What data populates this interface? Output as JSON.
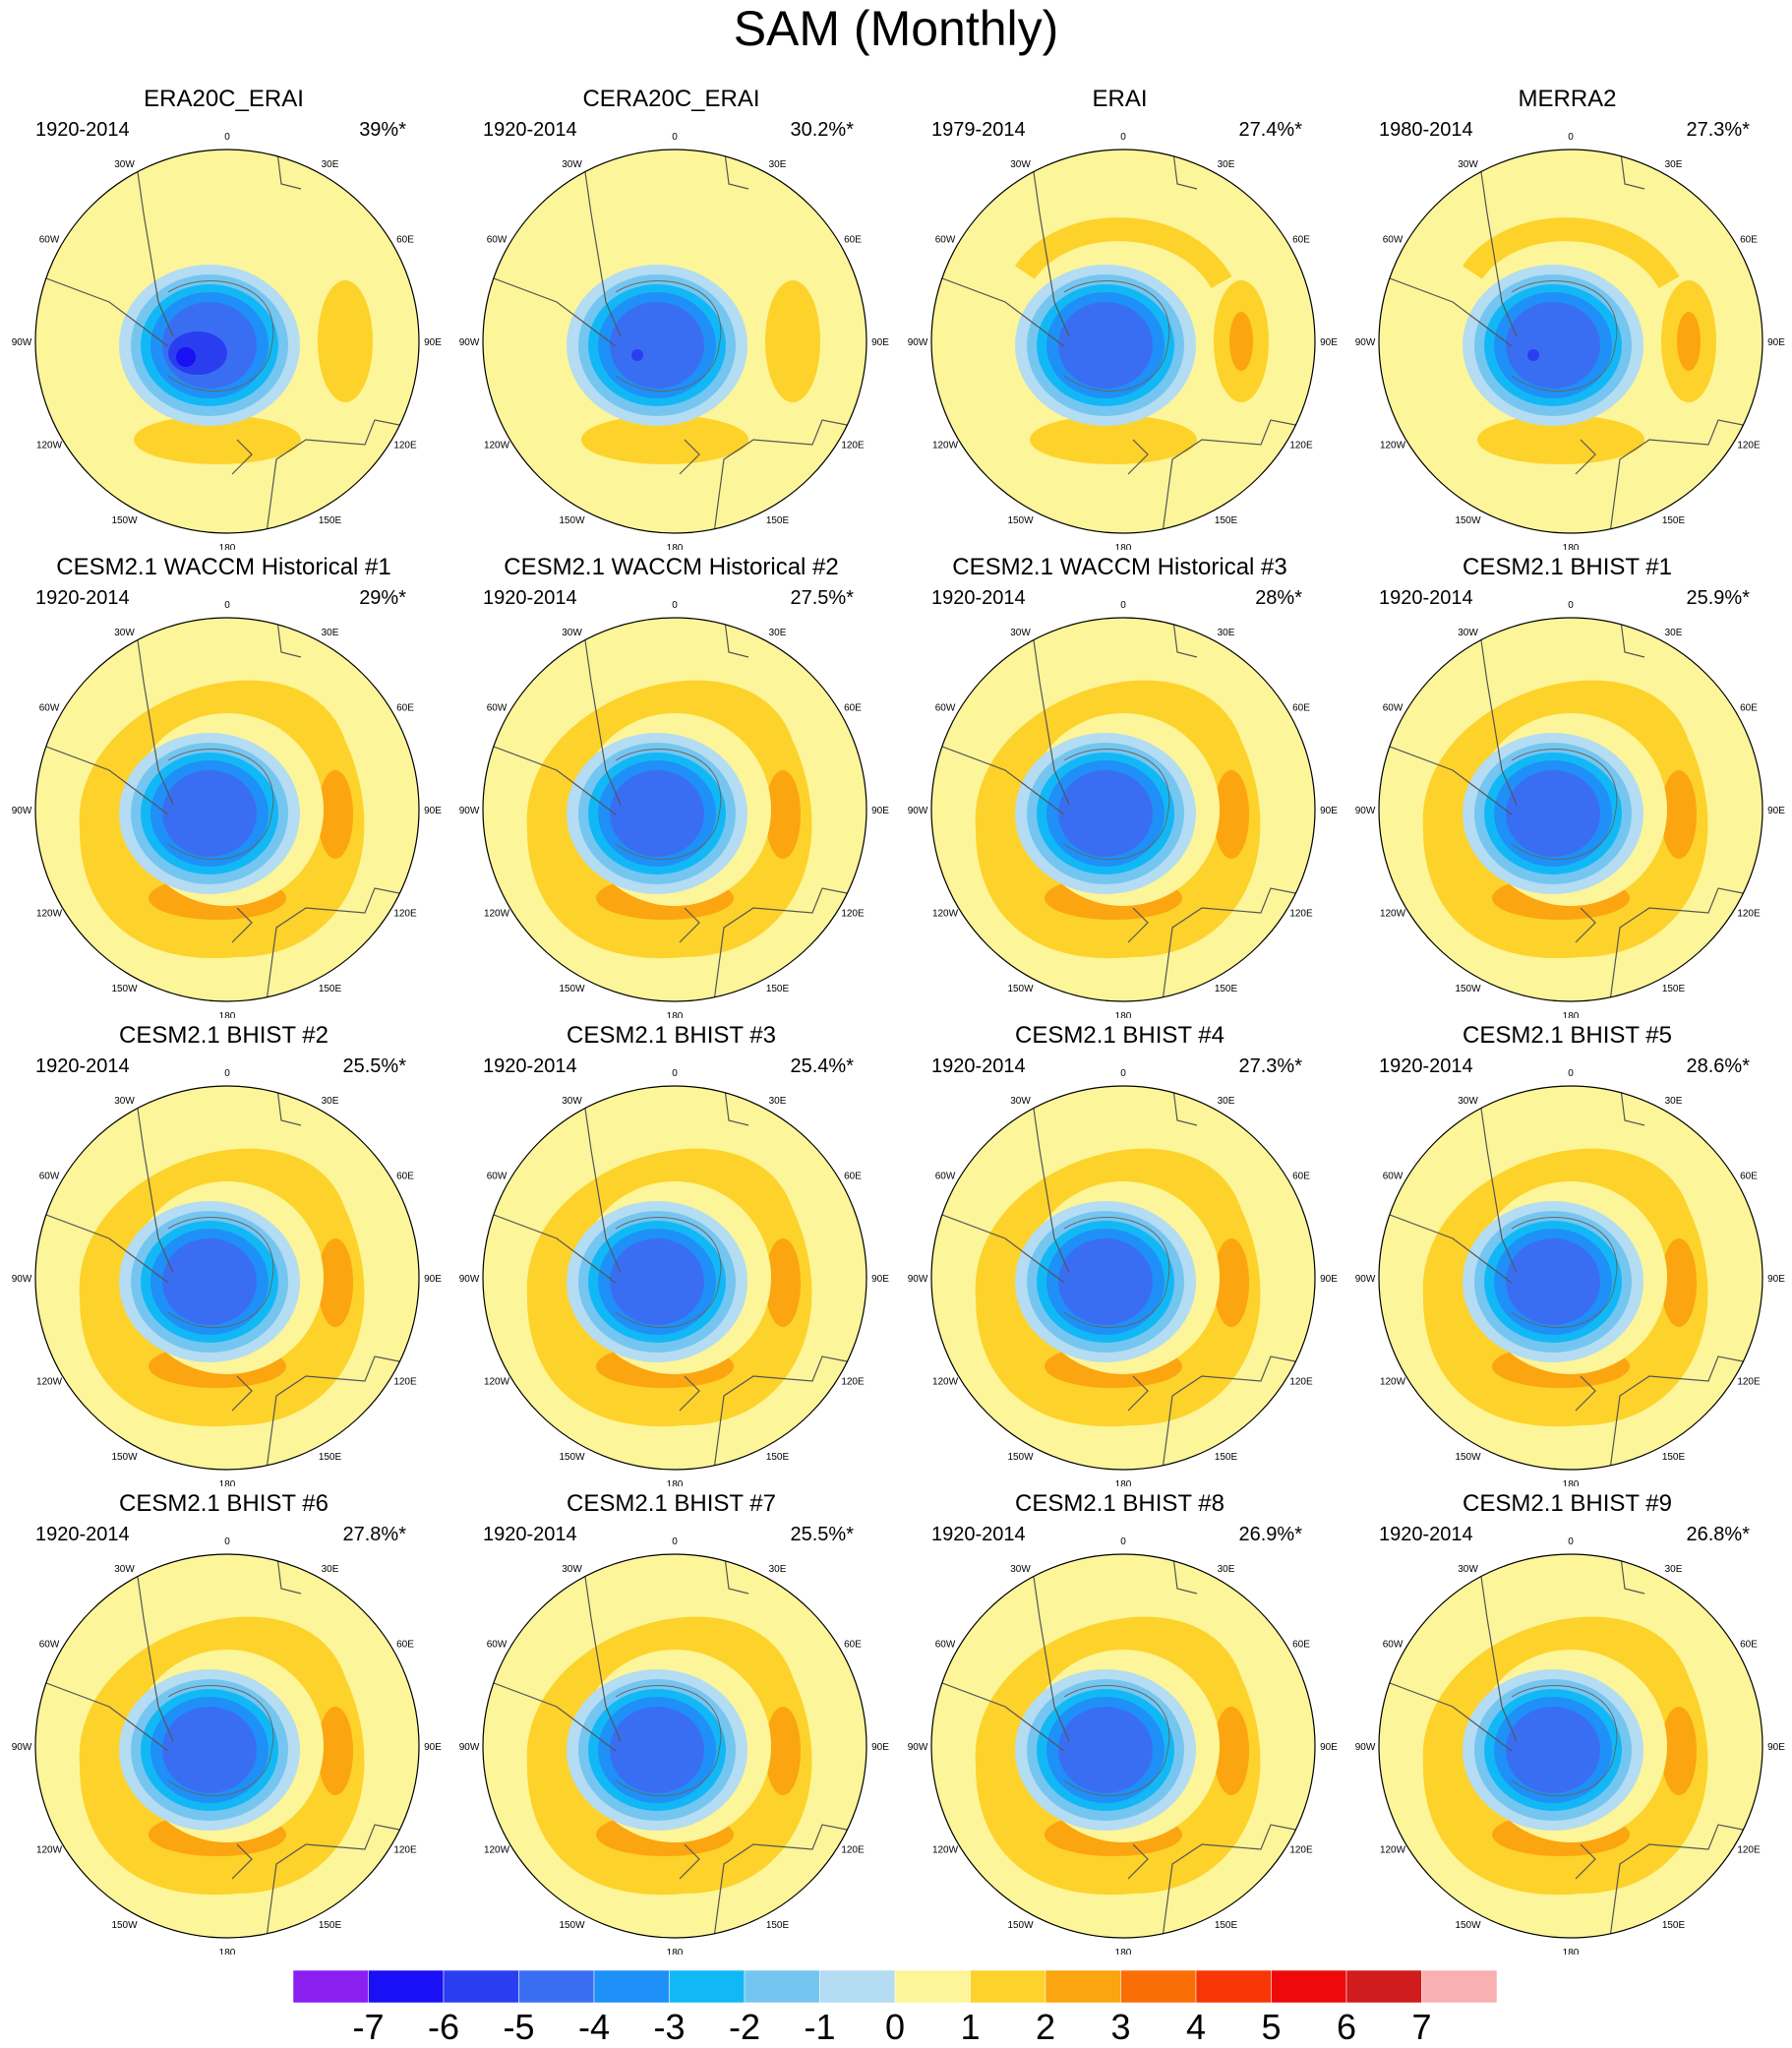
{
  "title": "SAM (Monthly)",
  "chart_data": {
    "type": "heatmap",
    "title": "SAM (Monthly)",
    "projection": "south polar stereographic",
    "longitude_labels": [
      "0",
      "30E",
      "60E",
      "90E",
      "120E",
      "150E",
      "180",
      "150W",
      "120W",
      "90W",
      "60W",
      "30W"
    ],
    "panels": [
      {
        "title": "ERA20C_ERAI",
        "period": "1920-2014",
        "variance": "39%*"
      },
      {
        "title": "CERA20C_ERAI",
        "period": "1920-2014",
        "variance": "30.2%*"
      },
      {
        "title": "ERAI",
        "period": "1979-2014",
        "variance": "27.4%*"
      },
      {
        "title": "MERRA2",
        "period": "1980-2014",
        "variance": "27.3%*"
      },
      {
        "title": "CESM2.1 WACCM Historical #1",
        "period": "1920-2014",
        "variance": "29%*"
      },
      {
        "title": "CESM2.1 WACCM Historical #2",
        "period": "1920-2014",
        "variance": "27.5%*"
      },
      {
        "title": "CESM2.1 WACCM Historical #3",
        "period": "1920-2014",
        "variance": "28%*"
      },
      {
        "title": "CESM2.1 BHIST #1",
        "period": "1920-2014",
        "variance": "25.9%*"
      },
      {
        "title": "CESM2.1 BHIST #2",
        "period": "1920-2014",
        "variance": "25.5%*"
      },
      {
        "title": "CESM2.1 BHIST #3",
        "period": "1920-2014",
        "variance": "25.4%*"
      },
      {
        "title": "CESM2.1 BHIST #4",
        "period": "1920-2014",
        "variance": "27.3%*"
      },
      {
        "title": "CESM2.1 BHIST #5",
        "period": "1920-2014",
        "variance": "28.6%*"
      },
      {
        "title": "CESM2.1 BHIST #6",
        "period": "1920-2014",
        "variance": "27.8%*"
      },
      {
        "title": "CESM2.1 BHIST #7",
        "period": "1920-2014",
        "variance": "25.5%*"
      },
      {
        "title": "CESM2.1 BHIST #8",
        "period": "1920-2014",
        "variance": "26.9%*"
      },
      {
        "title": "CESM2.1 BHIST #9",
        "period": "1920-2014",
        "variance": "26.8%*"
      }
    ],
    "colorbar": {
      "labels": [
        "-7",
        "-6",
        "-5",
        "-4",
        "-3",
        "-2",
        "-1",
        "0",
        "1",
        "2",
        "3",
        "4",
        "5",
        "6",
        "7"
      ],
      "colors": [
        "#8a1ff0",
        "#1a10f5",
        "#2a3ef0",
        "#3a6ef2",
        "#1e90f7",
        "#12b8f5",
        "#74c6f0",
        "#b4dcf2",
        "#fcf599",
        "#fdd22a",
        "#fba510",
        "#f96e05",
        "#f83706",
        "#ee0a0a",
        "#d01c1c",
        "#f8b0b0"
      ]
    }
  }
}
